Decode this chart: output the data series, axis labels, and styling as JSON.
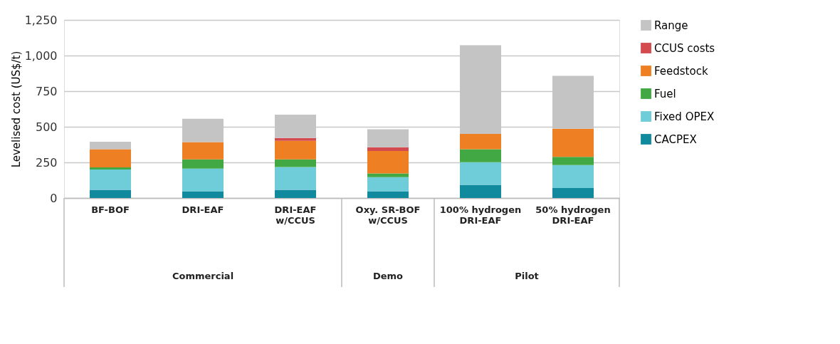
{
  "chart_data": {
    "type": "bar",
    "stacked": true,
    "ylabel": "Levelised cost (US$/t)",
    "categories": [
      "BF-BOF",
      "DRI-EAF",
      "DRI-EAF\nw/CCUS",
      "Oxy. SR-BOF\nw/CCUS",
      "100% hydrogen\nDRI-EAF",
      "50% hydrogen\nDRI-EAF"
    ],
    "series": [
      {
        "name": "CACPEX",
        "color": "#128a9e",
        "values": [
          57,
          48,
          57,
          48,
          92,
          70
        ]
      },
      {
        "name": "Fixed OPEX",
        "color": "#6fcdda",
        "values": [
          143,
          158,
          161,
          98,
          159,
          161
        ]
      },
      {
        "name": "Fuel",
        "color": "#42a844",
        "values": [
          15,
          65,
          53,
          27,
          92,
          58
        ]
      },
      {
        "name": "Feedstock",
        "color": "#ee7f22",
        "values": [
          128,
          121,
          130,
          157,
          107,
          197
        ]
      },
      {
        "name": "CCUS costs",
        "color": "#d34b4f",
        "values": [
          0,
          0,
          20,
          26,
          0,
          0
        ]
      },
      {
        "name": "Range",
        "color": "#c4c4c4",
        "values": [
          52,
          164,
          164,
          126,
          622,
          372
        ]
      }
    ],
    "ylim": [
      0,
      1250
    ],
    "yticks": [
      0,
      {
        "value": 250,
        "label": "250"
      },
      {
        "value": 500,
        "label": "500"
      },
      {
        "value": 750,
        "label": "750"
      },
      {
        "value": 1000,
        "label": "1,000"
      },
      {
        "value": 1250,
        "label": "1,250"
      }
    ],
    "grid": "y",
    "legend": "right",
    "annotations": [
      "Commercial",
      "Demo",
      "Pilot"
    ]
  }
}
